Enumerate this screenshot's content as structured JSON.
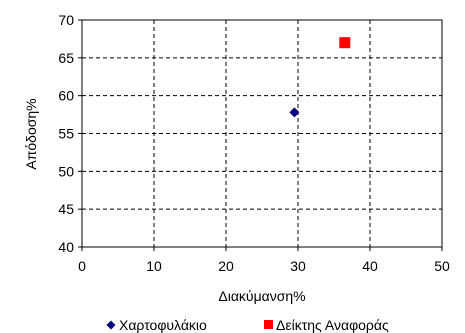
{
  "chart_data": {
    "type": "scatter",
    "xlabel": "Διακύμανση%",
    "ylabel": "Απόδοση%",
    "xlim": [
      0,
      50
    ],
    "ylim": [
      40,
      70
    ],
    "x_ticks": [
      0,
      10,
      20,
      30,
      40,
      50
    ],
    "y_ticks": [
      40,
      45,
      50,
      55,
      60,
      65,
      70
    ],
    "grid": true,
    "grid_style": "dashed",
    "legend_position": "bottom",
    "series": [
      {
        "name": "Χαρτοφυλάκιο",
        "marker": "diamond",
        "color": "#000080",
        "points": [
          {
            "x": 29.5,
            "y": 57.8
          }
        ]
      },
      {
        "name": "Δείκτης Αναφοράς",
        "marker": "square",
        "color": "#ff0000",
        "points": [
          {
            "x": 36.5,
            "y": 67.0
          }
        ]
      }
    ]
  }
}
